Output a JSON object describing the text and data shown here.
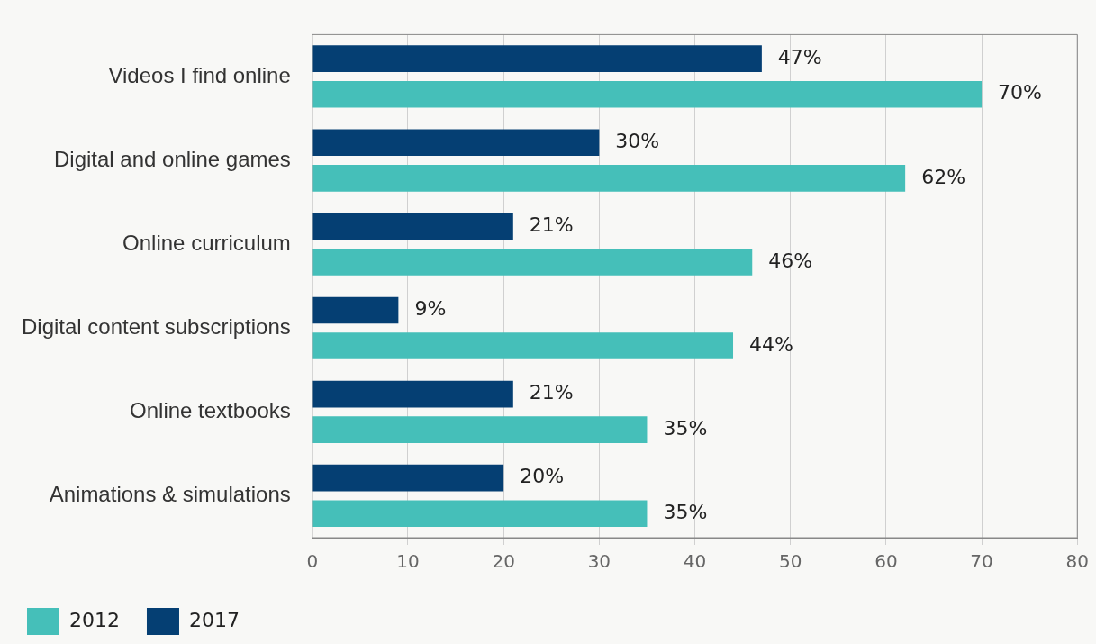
{
  "chart_data": {
    "type": "bar",
    "orientation": "horizontal",
    "categories": [
      "Videos I find online",
      "Digital and online games",
      "Online curriculum",
      "Digital content subscriptions",
      "Online textbooks",
      "Animations & simulations"
    ],
    "series": [
      {
        "name": "2012",
        "color": "#45bfb9",
        "values": [
          70,
          62,
          46,
          44,
          35,
          35
        ],
        "value_labels": [
          "70%",
          "62%",
          "46%",
          "44%",
          "35%",
          "35%"
        ]
      },
      {
        "name": "2017",
        "color": "#053f73",
        "values": [
          47,
          30,
          21,
          9,
          21,
          20
        ],
        "value_labels": [
          "47%",
          "30%",
          "21%",
          "9%",
          "21%",
          "20%"
        ]
      }
    ],
    "xlim": [
      0,
      80
    ],
    "xticks": [
      0,
      10,
      20,
      30,
      40,
      50,
      60,
      70,
      80
    ],
    "grid": "x",
    "legend": "bottom"
  }
}
